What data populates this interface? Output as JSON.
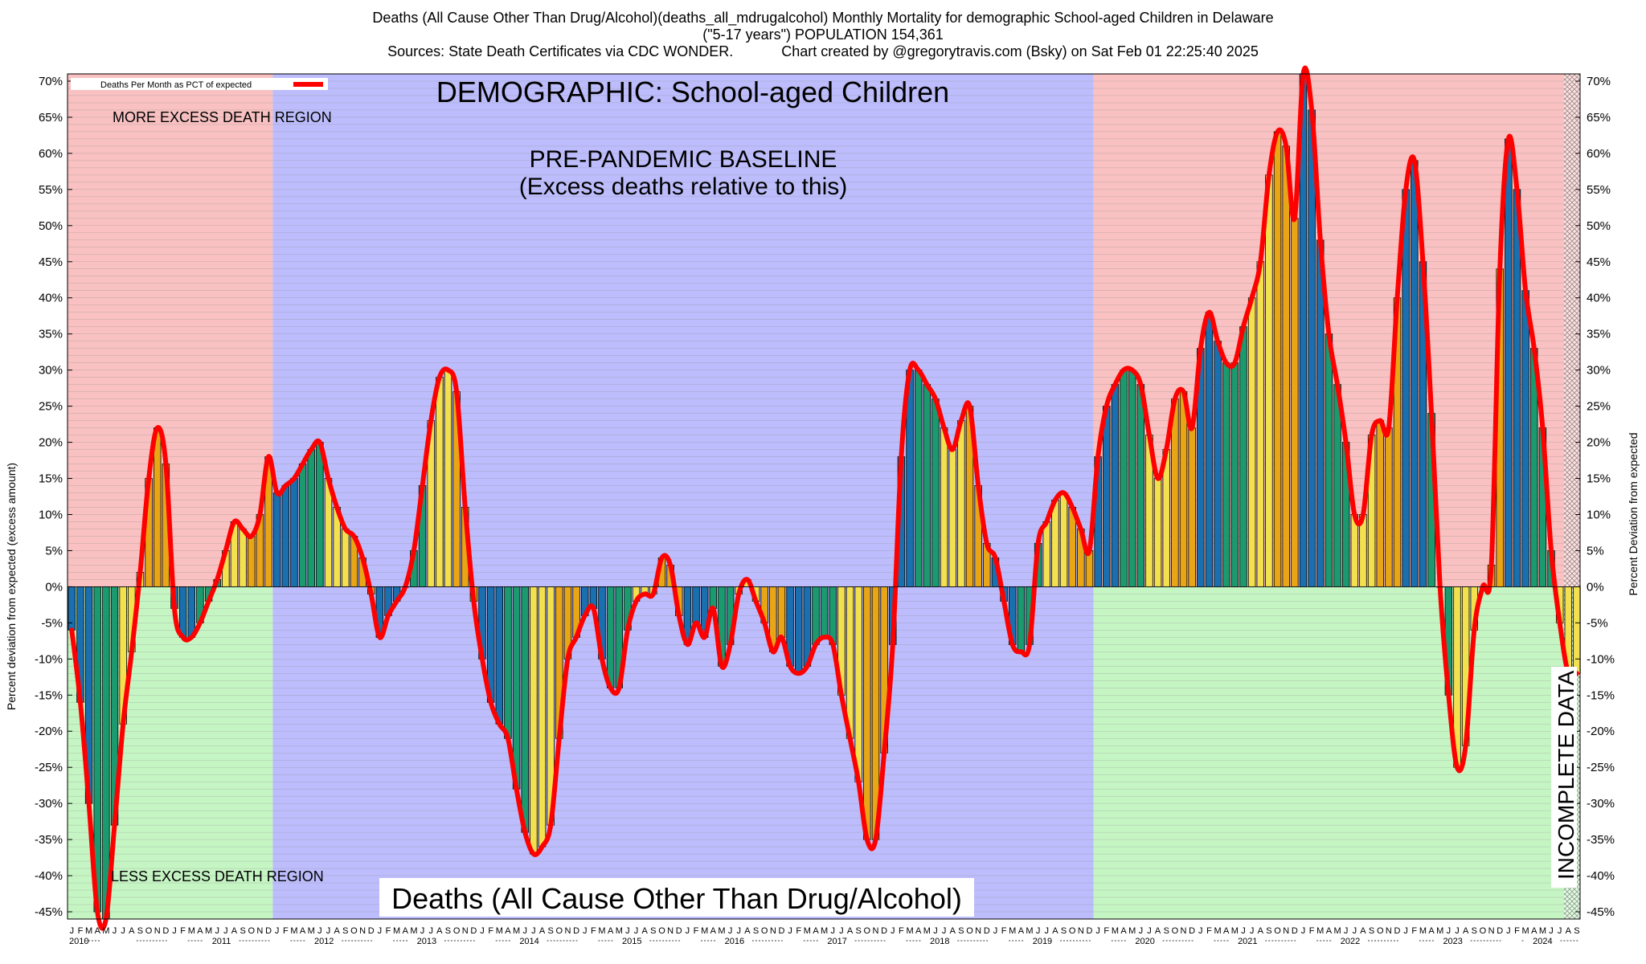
{
  "title": {
    "line1": "Deaths (All Cause Other Than Drug/Alcohol)(deaths_all_mdrugalcohol) Monthly Mortality for demographic School-aged Children in Delaware",
    "line2": "(\"5-17 years\") POPULATION 154,361",
    "line3": "Sources: State Death Certificates via CDC WONDER.            Chart created by @gregorytravis.com (Bsky) on Sat Feb 01 22:25:40 2025"
  },
  "chart_data": {
    "type": "bar",
    "start": "2010-01",
    "ylim": [
      -46,
      71
    ],
    "ylabel_left": "Percent deviation from expected (excess amount)",
    "ylabel_right": "Percent Deviation from expected",
    "yticks": [
      70,
      65,
      60,
      55,
      50,
      45,
      40,
      35,
      30,
      25,
      20,
      15,
      10,
      5,
      0,
      -5,
      -10,
      -15,
      -20,
      -25,
      -30,
      -35,
      -40,
      -45
    ],
    "month_letters": [
      "J",
      "F",
      "M",
      "A",
      "M",
      "J",
      "J",
      "A",
      "S",
      "O",
      "N",
      "D"
    ],
    "years": [
      "2010",
      "2011",
      "2012",
      "2013",
      "2014",
      "2015",
      "2016",
      "2017",
      "2018",
      "2019",
      "2020",
      "2021",
      "2022",
      "2023",
      "2024"
    ],
    "legend": "Deaths Per Month as PCT of expected",
    "annotations": {
      "demographic": "DEMOGRAPHIC: School-aged Children",
      "more_excess": "MORE EXCESS DEATH REGION",
      "less_excess": "LESS EXCESS DEATH REGION",
      "baseline_1": "PRE-PANDEMIC BASELINE",
      "baseline_2": "(Excess deaths relative to this)",
      "metric": "Deaths (All Cause Other Than Drug/Alcohol)",
      "incomplete": "INCOMPLETE DATA"
    },
    "baseline_period": [
      "2012-01",
      "2019-12"
    ],
    "incomplete_from": "2024-08",
    "colors": {
      "more_region": "#f9c1c1",
      "less_region": "#c6f5c4",
      "baseline_region": "#bdbdfd",
      "line": "#ff0000",
      "bar_blue": "#1a6faf",
      "bar_green": "#1a9a6e",
      "bar_yellow": "#f2e04e",
      "bar_orange": "#e8a515"
    },
    "values": [
      -6,
      -16,
      -30,
      -45,
      -46,
      -33,
      -19,
      -9,
      2,
      15,
      22,
      17,
      -3,
      -7,
      -7,
      -5,
      -2,
      1,
      5,
      9,
      8,
      7,
      10,
      18,
      13,
      14,
      15,
      17,
      19,
      20,
      15,
      11,
      8,
      7,
      4,
      -1,
      -7,
      -4,
      -2,
      0,
      5,
      14,
      23,
      29,
      30,
      27,
      11,
      -2,
      -10,
      -16,
      -19,
      -21,
      -28,
      -34,
      -37,
      -36,
      -33,
      -21,
      -10,
      -7,
      -4,
      -3,
      -10,
      -14,
      -14,
      -6,
      -2,
      -1,
      -1,
      4,
      3,
      -4,
      -8,
      -5,
      -7,
      -3,
      -11,
      -8,
      -1,
      1,
      -2,
      -5,
      -9,
      -7,
      -11,
      -12,
      -11,
      -8,
      -7,
      -8,
      -15,
      -21,
      -27,
      -35,
      -35,
      -23,
      -8,
      18,
      30,
      30,
      28,
      26,
      22,
      19,
      23,
      25,
      14,
      6,
      4,
      -2,
      -8,
      -9,
      -8,
      6,
      9,
      12,
      13,
      11,
      8,
      5,
      18,
      25,
      28,
      30,
      30,
      28,
      21,
      15,
      19,
      26,
      27,
      22,
      33,
      38,
      34,
      31,
      31,
      36,
      40,
      45,
      57,
      63,
      61,
      51,
      71,
      66,
      48,
      35,
      28,
      20,
      10,
      10,
      21,
      23,
      22,
      40,
      55,
      59,
      45,
      24,
      0,
      -15,
      -25,
      -22,
      -6,
      0,
      3,
      44,
      62,
      55,
      41,
      33,
      22,
      5,
      -5,
      -12,
      -12
    ]
  }
}
